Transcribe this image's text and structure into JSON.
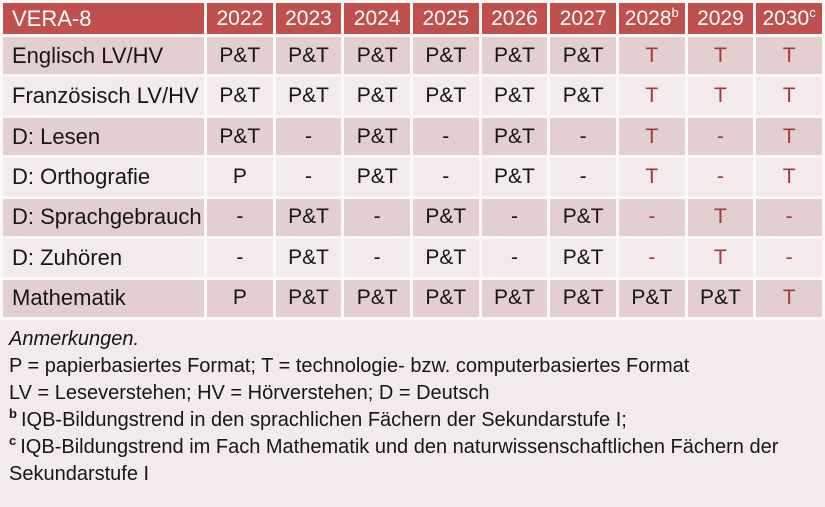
{
  "colors": {
    "header_bg": "#C0504D",
    "header_text": "#FFFFFF",
    "row_band_dark": "#E3CFCF",
    "row_band_light": "#F3EBEB",
    "grid_gap": "#FBF8F8",
    "body_text": "#161616",
    "tech_format_red": "#A03B3A"
  },
  "table": {
    "corner_label": "VERA-8",
    "years": [
      {
        "label": "2022"
      },
      {
        "label": "2023"
      },
      {
        "label": "2024"
      },
      {
        "label": "2025"
      },
      {
        "label": "2026"
      },
      {
        "label": "2027"
      },
      {
        "label": "2028",
        "sup": "b"
      },
      {
        "label": "2029"
      },
      {
        "label": "2030",
        "sup": "c"
      }
    ],
    "rows": [
      {
        "label": "Englisch LV/HV",
        "cells": [
          {
            "v": "P&T",
            "variant": "standard"
          },
          {
            "v": "P&T",
            "variant": "standard"
          },
          {
            "v": "P&T",
            "variant": "standard"
          },
          {
            "v": "P&T",
            "variant": "standard"
          },
          {
            "v": "P&T",
            "variant": "standard"
          },
          {
            "v": "P&T",
            "variant": "standard"
          },
          {
            "v": "T",
            "variant": "tech"
          },
          {
            "v": "T",
            "variant": "tech"
          },
          {
            "v": "T",
            "variant": "tech"
          }
        ]
      },
      {
        "label": "Französisch LV/HV",
        "cells": [
          {
            "v": "P&T",
            "variant": "standard"
          },
          {
            "v": "P&T",
            "variant": "standard"
          },
          {
            "v": "P&T",
            "variant": "standard"
          },
          {
            "v": "P&T",
            "variant": "standard"
          },
          {
            "v": "P&T",
            "variant": "standard"
          },
          {
            "v": "P&T",
            "variant": "standard"
          },
          {
            "v": "T",
            "variant": "tech"
          },
          {
            "v": "T",
            "variant": "tech"
          },
          {
            "v": "T",
            "variant": "tech"
          }
        ]
      },
      {
        "label": "D: Lesen",
        "cells": [
          {
            "v": "P&T",
            "variant": "standard"
          },
          {
            "v": "-",
            "variant": "standard"
          },
          {
            "v": "P&T",
            "variant": "standard"
          },
          {
            "v": "-",
            "variant": "standard"
          },
          {
            "v": "P&T",
            "variant": "standard"
          },
          {
            "v": "-",
            "variant": "standard"
          },
          {
            "v": "T",
            "variant": "tech"
          },
          {
            "v": "-",
            "variant": "tech"
          },
          {
            "v": "T",
            "variant": "tech"
          }
        ]
      },
      {
        "label": "D: Orthografie",
        "cells": [
          {
            "v": "P",
            "variant": "standard"
          },
          {
            "v": "-",
            "variant": "standard"
          },
          {
            "v": "P&T",
            "variant": "standard"
          },
          {
            "v": "-",
            "variant": "standard"
          },
          {
            "v": "P&T",
            "variant": "standard"
          },
          {
            "v": "-",
            "variant": "standard"
          },
          {
            "v": "T",
            "variant": "tech"
          },
          {
            "v": "-",
            "variant": "tech"
          },
          {
            "v": "T",
            "variant": "tech"
          }
        ]
      },
      {
        "label": "D: Sprachgebrauch",
        "cells": [
          {
            "v": "-",
            "variant": "standard"
          },
          {
            "v": "P&T",
            "variant": "standard"
          },
          {
            "v": "-",
            "variant": "standard"
          },
          {
            "v": "P&T",
            "variant": "standard"
          },
          {
            "v": "-",
            "variant": "standard"
          },
          {
            "v": "P&T",
            "variant": "standard"
          },
          {
            "v": "-",
            "variant": "tech"
          },
          {
            "v": "T",
            "variant": "tech"
          },
          {
            "v": "-",
            "variant": "tech"
          }
        ]
      },
      {
        "label": "D: Zuhören",
        "cells": [
          {
            "v": "-",
            "variant": "standard"
          },
          {
            "v": "P&T",
            "variant": "standard"
          },
          {
            "v": "-",
            "variant": "standard"
          },
          {
            "v": "P&T",
            "variant": "standard"
          },
          {
            "v": "-",
            "variant": "standard"
          },
          {
            "v": "P&T",
            "variant": "standard"
          },
          {
            "v": "-",
            "variant": "tech"
          },
          {
            "v": "T",
            "variant": "tech"
          },
          {
            "v": "-",
            "variant": "tech"
          }
        ]
      },
      {
        "label": "Mathematik",
        "cells": [
          {
            "v": "P",
            "variant": "standard"
          },
          {
            "v": "P&T",
            "variant": "standard"
          },
          {
            "v": "P&T",
            "variant": "standard"
          },
          {
            "v": "P&T",
            "variant": "standard"
          },
          {
            "v": "P&T",
            "variant": "standard"
          },
          {
            "v": "P&T",
            "variant": "standard"
          },
          {
            "v": "P&T",
            "variant": "standard"
          },
          {
            "v": "P&T",
            "variant": "standard"
          },
          {
            "v": "T",
            "variant": "tech"
          }
        ]
      }
    ]
  },
  "notes": {
    "title": "Anmerkungen.",
    "format_legend": "P = papierbasiertes Format; T = technologie- bzw. computerbasiertes Format",
    "abbreviations": "LV = Leseverstehen; HV = Hörverstehen; D = Deutsch",
    "footnote_b": {
      "sup": "b",
      "text": "IQB-Bildungstrend in den sprachlichen Fächern der Sekundarstufe I;"
    },
    "footnote_c": {
      "sup": "c",
      "text": "IQB-Bildungstrend im Fach Mathematik und den naturwissenschaftlichen Fächern der Sekundarstufe I"
    }
  }
}
